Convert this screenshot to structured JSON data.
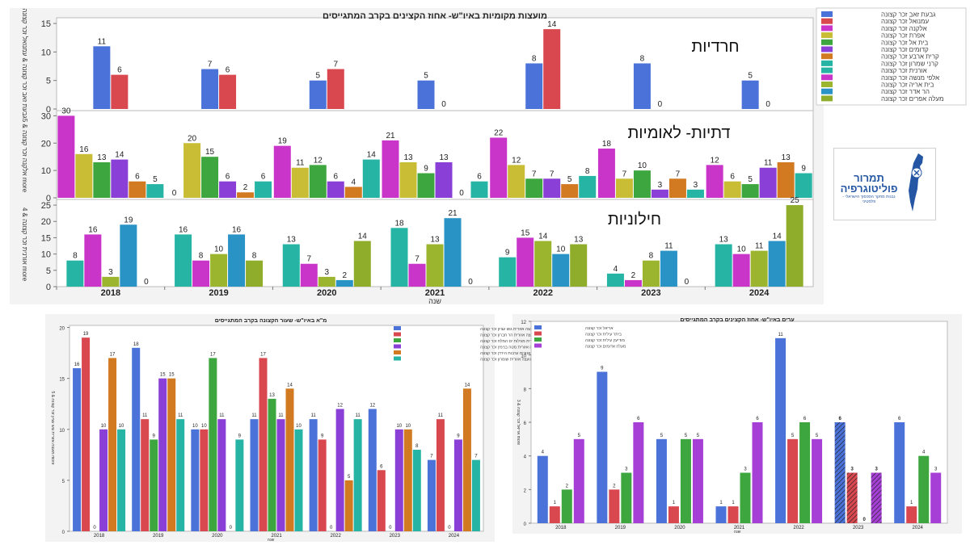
{
  "colors": {
    "blue": "#4a72d9",
    "red": "#d9474f",
    "magenta": "#c935c9",
    "olive": "#c8bd35",
    "green": "#3ea63e",
    "purple": "#8a3fd6",
    "orange": "#d27a22",
    "teal": "#26b5a5",
    "skyblue": "#2a93c6",
    "olivegreen": "#8fad2a"
  },
  "chart_data": [
    {
      "type": "bar",
      "title": "מועצות מקומיות באיו\"ש- אחוז הקצינים בקרב המתגייסים",
      "xlabel": "שנה",
      "categories": [
        "2018",
        "2019",
        "2020",
        "2021",
        "2022",
        "2023",
        "2024"
      ],
      "legend": [
        "גבעת זאב זכר קצונה",
        "עמנואל זכר קצונה",
        "אלקנה זכר קצונה",
        "אפרת זכר קצונה",
        "בית אל זכר קצונה",
        "קדומים זכר קצונה",
        "קרית ארבע זכר קצונה",
        "קרני שמרון זכר קצונה",
        "אורנית זכר קצונה",
        "אלפי מנשה זכר קצונה",
        "בית אריה זכר קצונה",
        "הר אדר זכר קצונה",
        "מעלה אפרים זכר קצונה"
      ],
      "legend_placement": "right",
      "panels": [
        {
          "label": "חרדיות",
          "ylabel": "גבעת זאב זכר קצונה & עמנואל זכר קצונה",
          "ylim": [
            0,
            16
          ],
          "yticks": [
            "0",
            "5",
            "10",
            "15"
          ],
          "series": [
            {
              "name": "גבעת זאב זכר קצונה",
              "color": "#4a72d9",
              "values": [
                11,
                7,
                5,
                5,
                8,
                8,
                5
              ]
            },
            {
              "name": "עמנואל זכר קצונה",
              "color": "#d9474f",
              "values": [
                6,
                6,
                7,
                0,
                14,
                0,
                0
              ]
            }
          ]
        },
        {
          "label": "דתיות- לאומיות",
          "ylabel": "אלקנה זכר קצונה & 5 more",
          "ylim": [
            0,
            31
          ],
          "yticks": [
            "0",
            "10",
            "20",
            "30"
          ],
          "series": [
            {
              "name": "אלקנה זכר קצונה",
              "color": "#c935c9",
              "values": [
                30,
                0,
                19,
                21,
                22,
                18,
                12
              ]
            },
            {
              "name": "אפרת זכר קצונה",
              "color": "#c8bd35",
              "values": [
                16,
                20,
                11,
                13,
                12,
                7,
                6
              ]
            },
            {
              "name": "בית אל זכר קצונה",
              "color": "#3ea63e",
              "values": [
                13,
                15,
                12,
                9,
                7,
                10,
                5
              ]
            },
            {
              "name": "קדומים זכר קצונה",
              "color": "#8a3fd6",
              "values": [
                14,
                6,
                6,
                13,
                7,
                3,
                11
              ]
            },
            {
              "name": "קרית ארבע זכר קצונה",
              "color": "#d27a22",
              "values": [
                6,
                2,
                4,
                0,
                5,
                7,
                13
              ]
            },
            {
              "name": "קרני שמרון זכר קצונה",
              "color": "#26b5a5",
              "values": [
                5,
                6,
                14,
                6,
                8,
                3,
                9
              ]
            }
          ]
        },
        {
          "label": "חילוניות",
          "ylabel": "אורנית זכר קצונה & 4 more",
          "ylim": [
            0,
            26
          ],
          "yticks": [
            "0",
            "5",
            "10",
            "15",
            "20",
            "25"
          ],
          "series": [
            {
              "name": "אורנית זכר קצונה",
              "color": "#26b5a5",
              "values": [
                8,
                16,
                13,
                18,
                9,
                4,
                13
              ]
            },
            {
              "name": "אלפי מנשה זכר קצונה",
              "color": "#c935c9",
              "values": [
                16,
                8,
                7,
                7,
                15,
                2,
                10
              ]
            },
            {
              "name": "בית אריה זכר קצונה",
              "color": "#9cb52e",
              "values": [
                3,
                10,
                3,
                13,
                14,
                8,
                11
              ]
            },
            {
              "name": "הר אדר זכר קצונה",
              "color": "#2a93c6",
              "values": [
                19,
                16,
                2,
                21,
                10,
                11,
                14
              ]
            },
            {
              "name": "מעלה אפרים זכר קצונה",
              "color": "#8fad2a",
              "values": [
                0,
                8,
                14,
                0,
                13,
                0,
                25
              ]
            }
          ]
        }
      ]
    },
    {
      "type": "bar",
      "title": "מ\"א באיו\"ש- שעור הקצונה בקרב המתגייסים",
      "xlabel": "שנה",
      "ylabel": "מועצה אזורית גוש עציון זכר קצונה & 5 more",
      "categories": [
        "2018",
        "2019",
        "2020",
        "2021",
        "2022",
        "2023",
        "2024"
      ],
      "ylim": [
        0,
        20
      ],
      "yticks": [
        "0",
        "5",
        "10",
        "15",
        "20"
      ],
      "legend_placement": "top-right",
      "series": [
        {
          "name": "מועצה אזורית גוש עציון זכר קצונה",
          "color": "#4a72d9",
          "values": [
            16,
            18,
            10,
            11,
            11,
            12,
            7
          ]
        },
        {
          "name": "מועצה אזורית הר חברון זכר קצונה",
          "color": "#d9474f",
          "values": [
            19,
            11,
            10,
            17,
            9,
            6,
            11
          ]
        },
        {
          "name": "מועצה אזורית מגילות ים המלח זכר קצונה",
          "color": "#3ea63e",
          "values": [
            0,
            9,
            17,
            13,
            0,
            0,
            0
          ]
        },
        {
          "name": "מועצה אזורית מטה בנימין זכר קצונה",
          "color": "#8a3fd6",
          "values": [
            10,
            15,
            11,
            11,
            12,
            10,
            9
          ]
        },
        {
          "name": "מועצה אזורית ערבות הירדן זכר קצונה",
          "color": "#d27a22",
          "values": [
            17,
            15,
            0,
            14,
            5,
            10,
            14
          ]
        },
        {
          "name": "מועצה אזורית שומרון זכר קצונה",
          "color": "#26b5a5",
          "values": [
            10,
            11,
            9,
            10,
            11,
            8,
            7
          ]
        }
      ]
    },
    {
      "type": "bar",
      "title": "ערים באיו\"ש- אחוז הקצינים בקרב המתגייסים",
      "xlabel": "שנה",
      "ylabel": "אריאל זכר קצונה & 3 more",
      "categories": [
        "2018",
        "2019",
        "2020",
        "2021",
        "2022",
        "2023",
        "2024"
      ],
      "ylim": [
        0,
        12
      ],
      "yticks": [
        "0",
        "2",
        "4",
        "6",
        "8",
        "10",
        "12"
      ],
      "legend_placement": "top-left",
      "hatched_category": "2023",
      "series": [
        {
          "name": "אריאל זכר קצונה",
          "color": "#4a72d9",
          "values": [
            4,
            9,
            5,
            1,
            11,
            6,
            6
          ]
        },
        {
          "name": "ביתר עילית זכר קצונה",
          "color": "#d9474f",
          "values": [
            1,
            2,
            1,
            1,
            5,
            3,
            1
          ]
        },
        {
          "name": "מודיעין עילית זכר קצונה",
          "color": "#3ea63e",
          "values": [
            2,
            3,
            5,
            3,
            6,
            0,
            4
          ]
        },
        {
          "name": "מעלה אדומים זכר קצונה",
          "color": "#a63fd6",
          "values": [
            5,
            6,
            5,
            6,
            5,
            3,
            3
          ]
        }
      ]
    }
  ],
  "logo": {
    "title": "תמרור פוליטוגרפיה",
    "subtitle": "נבנות מחקר הסכסוך הישראלי - פלסטיני"
  }
}
